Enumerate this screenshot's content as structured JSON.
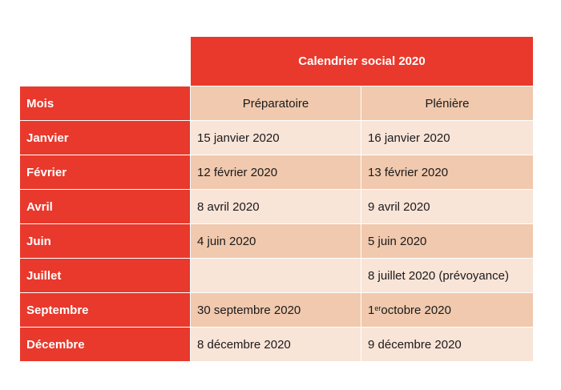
{
  "table": {
    "title": "Calendrier social 2020",
    "headers": {
      "month": "Mois",
      "prep": "Préparatoire",
      "pleniere": "Plénière"
    },
    "rows": [
      {
        "month": "Janvier",
        "prep": "15 janvier 2020",
        "pleniere": "16 janvier 2020"
      },
      {
        "month": "Février",
        "prep": "12 février 2020",
        "pleniere": "13 février 2020"
      },
      {
        "month": "Avril",
        "prep": "8 avril 2020",
        "pleniere": "9 avril 2020"
      },
      {
        "month": "Juin",
        "prep": "4 juin 2020",
        "pleniere": "5 juin 2020"
      },
      {
        "month": "Juillet",
        "prep": "",
        "pleniere": "8 juillet 2020 (prévoyance)"
      },
      {
        "month": "Septembre",
        "prep": "30 septembre 2020",
        "pleniere_sup": "er",
        "pleniere_num": "1",
        "pleniere_rest": " octobre 2020"
      },
      {
        "month": "Décembre",
        "prep": "8 décembre 2020",
        "pleniere": "9 décembre 2020"
      }
    ]
  },
  "colors": {
    "accent": "#e8392c",
    "band_light": "#f9e4d8",
    "band_dark": "#f0c9ae"
  }
}
